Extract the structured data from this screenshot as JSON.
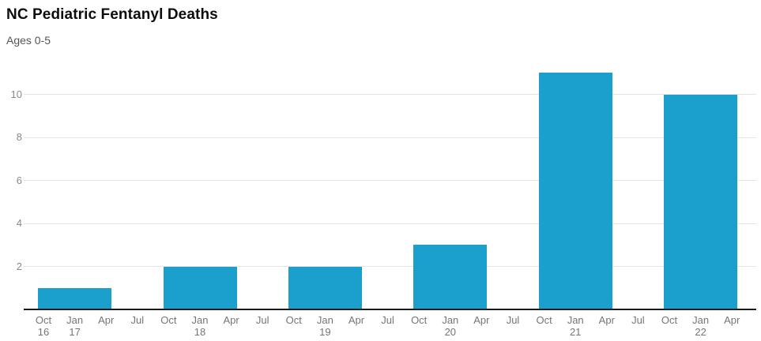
{
  "header": {
    "title": "NC Pediatric Fentanyl Deaths",
    "subtitle": "Ages 0-5"
  },
  "chart_data": {
    "type": "bar",
    "title": "NC Pediatric Fentanyl Deaths",
    "subtitle": "Ages 0-5",
    "xlabel": "",
    "ylabel": "",
    "ylim": [
      0,
      11.3
    ],
    "y_ticks": [
      2,
      4,
      6,
      8,
      10
    ],
    "grid": "horizontal",
    "legend": "none",
    "bar_color": "#1ba0cd",
    "series": [
      {
        "name": "Pediatric fentanyl deaths, ages 0-5",
        "values": [
          1,
          2,
          2,
          3,
          11,
          10
        ]
      }
    ],
    "categories": [
      "Oct 16 - Apr 17",
      "Oct 17 - Apr 18",
      "Oct 18 - Apr 19",
      "Oct 19 - Apr 20",
      "Oct 20 - Apr 21",
      "Oct 21 - Apr 22"
    ],
    "bar_center_tick_indices": [
      1,
      5,
      9,
      13,
      17,
      21
    ],
    "x_ticks": [
      {
        "line1": "Oct",
        "line2": "16"
      },
      {
        "line1": "Jan",
        "line2": "17"
      },
      {
        "line1": "Apr",
        "line2": ""
      },
      {
        "line1": "Jul",
        "line2": ""
      },
      {
        "line1": "Oct",
        "line2": ""
      },
      {
        "line1": "Jan",
        "line2": "18"
      },
      {
        "line1": "Apr",
        "line2": ""
      },
      {
        "line1": "Jul",
        "line2": ""
      },
      {
        "line1": "Oct",
        "line2": ""
      },
      {
        "line1": "Jan",
        "line2": "19"
      },
      {
        "line1": "Apr",
        "line2": ""
      },
      {
        "line1": "Jul",
        "line2": ""
      },
      {
        "line1": "Oct",
        "line2": ""
      },
      {
        "line1": "Jan",
        "line2": "20"
      },
      {
        "line1": "Apr",
        "line2": ""
      },
      {
        "line1": "Jul",
        "line2": ""
      },
      {
        "line1": "Oct",
        "line2": ""
      },
      {
        "line1": "Jan",
        "line2": "21"
      },
      {
        "line1": "Apr",
        "line2": ""
      },
      {
        "line1": "Jul",
        "line2": ""
      },
      {
        "line1": "Oct",
        "line2": ""
      },
      {
        "line1": "Jan",
        "line2": "22"
      },
      {
        "line1": "Apr",
        "line2": ""
      }
    ]
  }
}
